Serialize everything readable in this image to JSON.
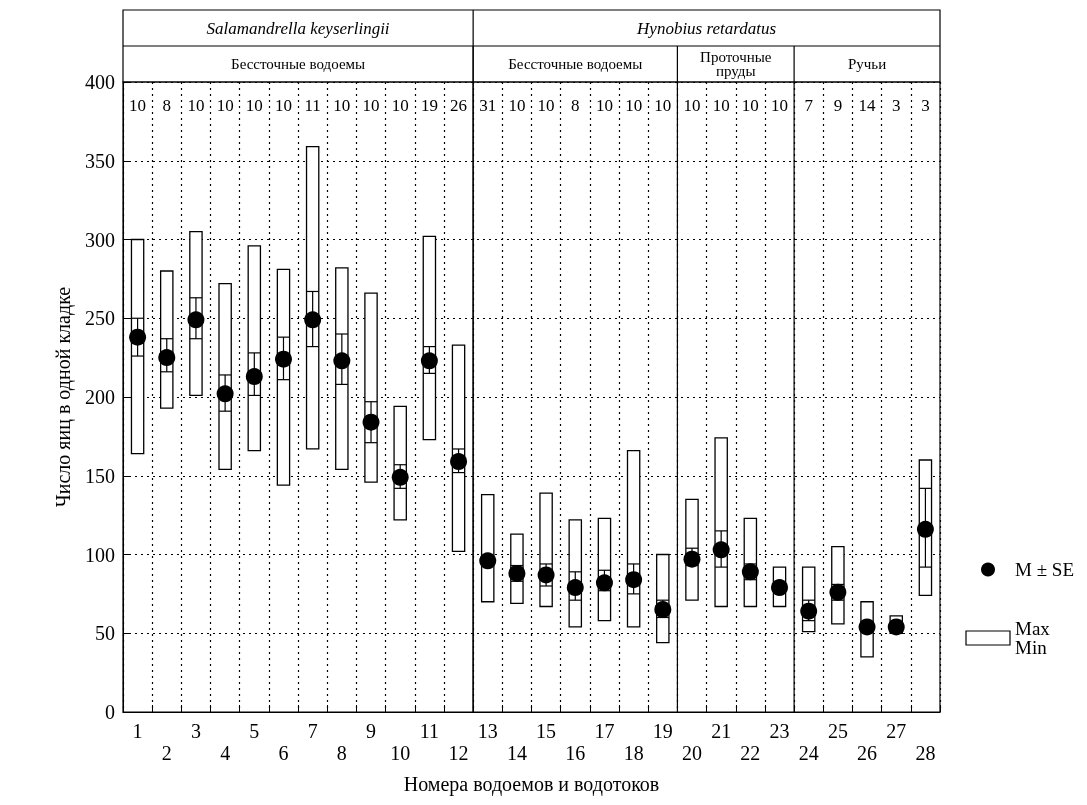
{
  "chart_data": {
    "type": "bar",
    "xlabel": "Номера водоемов и водотоков",
    "ylabel": "Число яиц в одной кладке",
    "categories": [
      "1",
      "2",
      "3",
      "4",
      "5",
      "6",
      "7",
      "8",
      "9",
      "10",
      "11",
      "12",
      "13",
      "14",
      "15",
      "16",
      "17",
      "18",
      "19",
      "20",
      "21",
      "22",
      "23",
      "24",
      "25",
      "26",
      "27",
      "28"
    ],
    "ylim": [
      0,
      400
    ],
    "yticks": [
      0,
      50,
      100,
      150,
      200,
      250,
      300,
      350,
      400
    ],
    "grid": true,
    "legend": "right",
    "series": [
      {
        "name": "Max\nMin",
        "color": "#ffffff",
        "base": [
          164,
          193,
          201,
          154,
          166,
          144,
          167,
          154,
          146,
          122,
          173,
          102,
          70,
          69,
          67,
          54,
          58,
          54,
          44,
          71,
          67,
          67,
          67,
          51,
          56,
          35,
          50,
          74
        ],
        "values": [
          136,
          87,
          104,
          118,
          130,
          137,
          192,
          128,
          120,
          72,
          129,
          131,
          68,
          44,
          72,
          68,
          65,
          112,
          56,
          64,
          107,
          56,
          25,
          41,
          49,
          35,
          11,
          86
        ]
      },
      {
        "name": "M ± SE",
        "type": "scatter",
        "color": "#000000",
        "marker": "circle",
        "x": [
          "1",
          "2",
          "3",
          "4",
          "5",
          "6",
          "7",
          "8",
          "9",
          "10",
          "11",
          "12",
          "13",
          "14",
          "15",
          "16",
          "17",
          "18",
          "19",
          "20",
          "21",
          "22",
          "23",
          "24",
          "25",
          "26",
          "27",
          "28"
        ],
        "values": [
          238,
          225,
          249,
          202,
          213,
          224,
          249,
          223,
          184,
          149,
          223,
          159,
          96,
          88,
          87,
          79,
          82,
          84,
          65,
          97,
          103,
          89,
          79,
          64,
          76,
          54,
          54,
          116
        ],
        "errors": [
          [
            226,
            250
          ],
          [
            216,
            237
          ],
          [
            237,
            263
          ],
          [
            191,
            214
          ],
          [
            201,
            228
          ],
          [
            211,
            238
          ],
          [
            232,
            267
          ],
          [
            208,
            240
          ],
          [
            171,
            197
          ],
          [
            142,
            157
          ],
          [
            215,
            232
          ],
          [
            152,
            167
          ],
          null,
          [
            83,
            93
          ],
          [
            80,
            94
          ],
          [
            71,
            89
          ],
          [
            77,
            90
          ],
          [
            75,
            94
          ],
          [
            60,
            71
          ],
          [
            93,
            104
          ],
          [
            92,
            115
          ],
          [
            84,
            94
          ],
          null,
          [
            58,
            71
          ],
          [
            71,
            81
          ],
          null,
          null,
          [
            92,
            142
          ]
        ]
      }
    ],
    "annotations": [
      "Salamandrella keyserlingii",
      "Hynobius retardatus",
      "Бессточные водоемы",
      "Бессточные водоемы",
      "Проточные\nпруды",
      "Ручьи",
      "10",
      "8",
      "10",
      "10",
      "10",
      "10",
      "11",
      "10",
      "10",
      "10",
      "19",
      "26",
      "31",
      "10",
      "10",
      "8",
      "10",
      "10",
      "10",
      "10",
      "10",
      "10",
      "10",
      "7",
      "9",
      "14",
      "3",
      "3"
    ]
  }
}
